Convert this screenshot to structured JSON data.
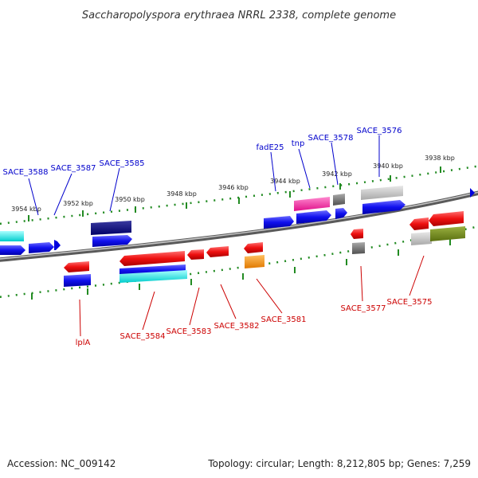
{
  "title": "Saccharopolyspora erythraea NRRL 2338, complete genome",
  "footer": {
    "accession": "Accession: NC_009142",
    "summary": "Topology: circular; Length: 8,212,805 bp; Genes: 7,259"
  },
  "ticks": [
    "3954 kbp",
    "3952 kbp",
    "3950 kbp",
    "3948 kbp",
    "3946 kbp",
    "3944 kbp",
    "3942 kbp",
    "3940 kbp",
    "3938 kbp"
  ],
  "genes_top": [
    "SACE_3588",
    "SACE_3587",
    "SACE_3585",
    "fadE25",
    "tnp",
    "SACE_3578",
    "SACE_3576"
  ],
  "genes_bottom": [
    "lplA",
    "SACE_3584",
    "SACE_3583",
    "SACE_3582",
    "SACE_3581",
    "SACE_3577",
    "SACE_3575"
  ],
  "colors": {
    "forward_label": "#0000cc",
    "reverse_label": "#cc0000",
    "backbone": "#808080",
    "tick_marks": "#228b22"
  }
}
